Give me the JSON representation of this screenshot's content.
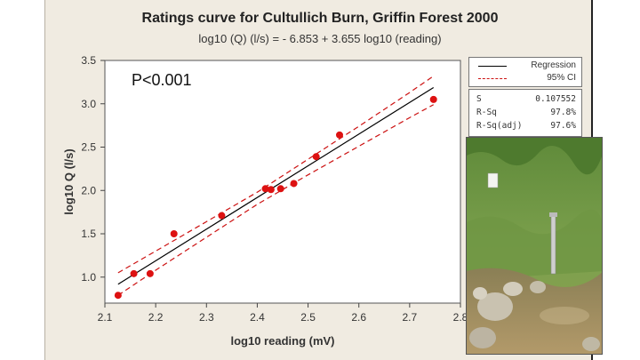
{
  "chart_data": {
    "type": "scatter",
    "title": "Ratings curve for Cultullich Burn, Griffin Forest 2000",
    "subtitle": "log10 (Q) (l/s) =  - 6.853 + 3.655 log10 (reading)",
    "xlabel": "log10 reading (mV)",
    "ylabel": "log10 Q (l/s)",
    "xlim": [
      2.1,
      2.8
    ],
    "ylim": [
      0.7,
      3.5
    ],
    "x_ticks": [
      2.1,
      2.2,
      2.3,
      2.4,
      2.5,
      2.6,
      2.7,
      2.8
    ],
    "x_tick_labels": [
      "2.1",
      "2.2",
      "2.3",
      "2.4",
      "2.5",
      "2.6",
      "2.7",
      "2.8"
    ],
    "y_ticks": [
      1.0,
      1.5,
      2.0,
      2.5,
      3.0,
      3.5
    ],
    "y_tick_labels": [
      "1.0",
      "1.5",
      "2.0",
      "2.5",
      "3.0",
      "3.5"
    ],
    "points": {
      "x": [
        2.126,
        2.157,
        2.189,
        2.236,
        2.33,
        2.416,
        2.427,
        2.446,
        2.472,
        2.516,
        2.562,
        2.747
      ],
      "y": [
        0.79,
        1.04,
        1.04,
        1.5,
        1.71,
        2.02,
        2.01,
        2.02,
        2.08,
        2.39,
        2.64,
        3.05
      ]
    },
    "regression": {
      "intercept": -6.853,
      "slope": 3.655,
      "x_range": [
        2.126,
        2.747
      ]
    },
    "ci_upper": {
      "x": [
        2.126,
        2.2,
        2.3,
        2.4,
        2.5,
        2.6,
        2.7,
        2.747
      ],
      "y": [
        1.05,
        1.3,
        1.64,
        1.98,
        2.36,
        2.74,
        3.13,
        3.32
      ]
    },
    "ci_lower": {
      "x": [
        2.126,
        2.2,
        2.3,
        2.4,
        2.5,
        2.6,
        2.7,
        2.747
      ],
      "y": [
        0.79,
        1.08,
        1.46,
        1.84,
        2.18,
        2.51,
        2.84,
        2.99
      ]
    },
    "colors": {
      "points": "#dd1111",
      "regression": "#000000",
      "ci": "#cc1111"
    }
  },
  "annotation": "P<0.001",
  "legend": {
    "regression_label": "Regression",
    "ci_label": "95% CI"
  },
  "stats": [
    {
      "label": "S",
      "value": "0.107552"
    },
    {
      "label": "R-Sq",
      "value": "97.8%"
    },
    {
      "label": "R-Sq(adj)",
      "value": "97.6%"
    }
  ]
}
